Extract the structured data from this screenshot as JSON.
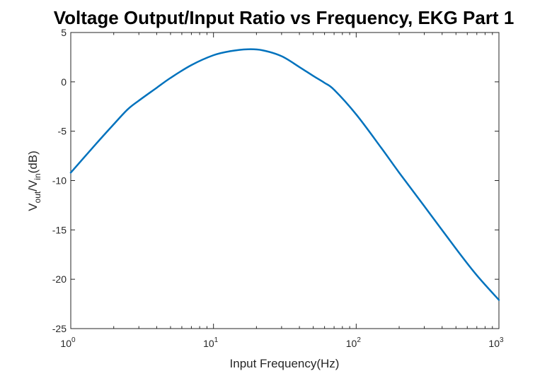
{
  "chart_data": {
    "type": "line",
    "title": "Voltage Output/Input Ratio vs Frequency, EKG Part 1",
    "xlabel": "Input Frequency(Hz)",
    "ylabel": {
      "v1": "V",
      "sub1": "out",
      "mid": "/V",
      "sub2": "in",
      "tail": "(dB)"
    },
    "xscale": "log",
    "xlim": [
      1,
      1000
    ],
    "ylim": [
      -25,
      5
    ],
    "grid": false,
    "line_color": "#0072BD",
    "x_ticks": [
      {
        "base": "10",
        "exp": "0"
      },
      {
        "base": "10",
        "exp": "1"
      },
      {
        "base": "10",
        "exp": "2"
      },
      {
        "base": "10",
        "exp": "3"
      }
    ],
    "y_ticks": [
      "5",
      "0",
      "-5",
      "-10",
      "-15",
      "-20",
      "-25"
    ],
    "series": [
      {
        "x": [
          1,
          1.5,
          2,
          2.5,
          3,
          4,
          5,
          7,
          10,
          13,
          17.4,
          22,
          30,
          40,
          50,
          60,
          70,
          100,
          150,
          200,
          300,
          500,
          700,
          1000
        ],
        "y": [
          -9.2,
          -6.3,
          -4.3,
          -2.8,
          -1.9,
          -0.6,
          0.4,
          1.7,
          2.7,
          3.1,
          3.3,
          3.2,
          2.6,
          1.5,
          0.6,
          -0.1,
          -0.8,
          -3.3,
          -6.7,
          -9.2,
          -12.6,
          -16.9,
          -19.6,
          -22.1
        ]
      }
    ]
  }
}
